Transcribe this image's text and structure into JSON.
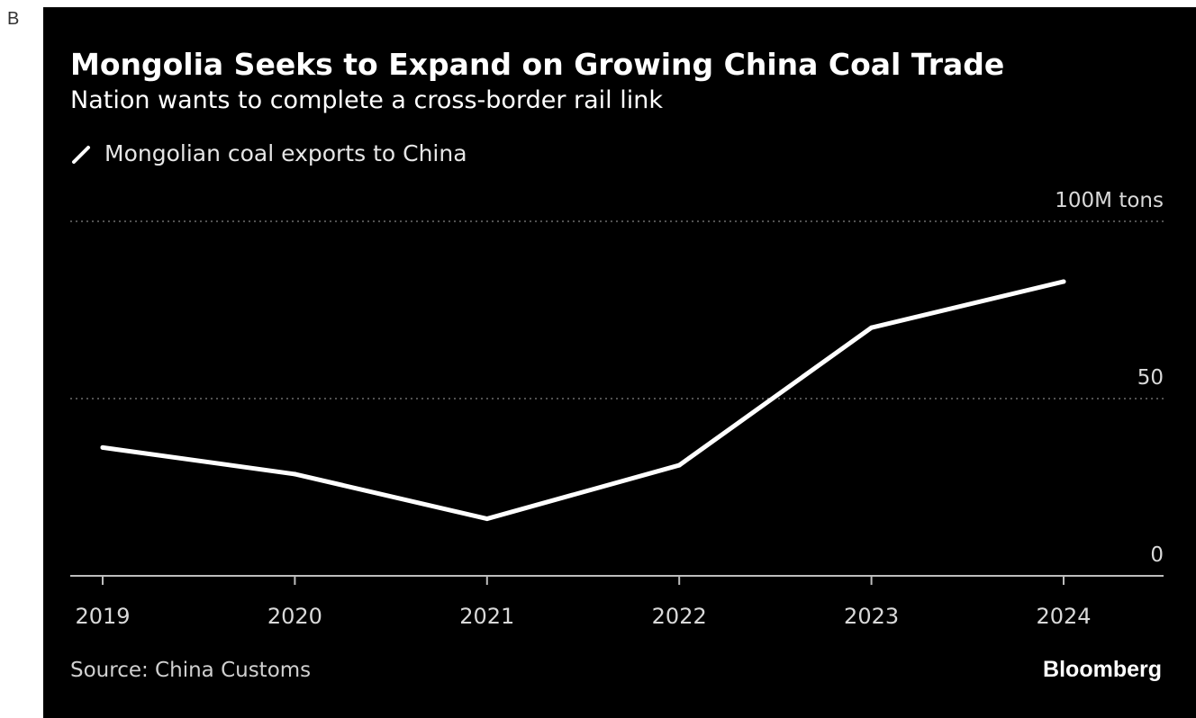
{
  "panel_label": "B",
  "chart_data": {
    "type": "line",
    "title": "Mongolia Seeks to Expand on Growing China Coal Trade",
    "subtitle": "Nation wants to complete a cross-border rail link",
    "categories": [
      "2019",
      "2020",
      "2021",
      "2022",
      "2023",
      "2024"
    ],
    "series": [
      {
        "name": "Mongolian coal exports to China",
        "values": [
          36.2,
          28.7,
          16.1,
          31.2,
          70.0,
          83.0
        ],
        "color": "#ffffff"
      }
    ],
    "y_ticks": [
      {
        "value": 0,
        "label": "0"
      },
      {
        "value": 50,
        "label": "50"
      },
      {
        "value": 100,
        "label": "100M tons"
      }
    ],
    "ylim": [
      0,
      100
    ],
    "xlabel": "",
    "ylabel": "",
    "grid": "dotted horizontal at 50 and 100",
    "legend_position": "top-left",
    "source": "Source: China Customs",
    "brand": "Bloomberg",
    "colors": {
      "background": "#000000",
      "line": "#ffffff",
      "grid": "#6e6e6e",
      "axis": "#bdbdbd",
      "tick_text": "#d9d9d9"
    }
  }
}
